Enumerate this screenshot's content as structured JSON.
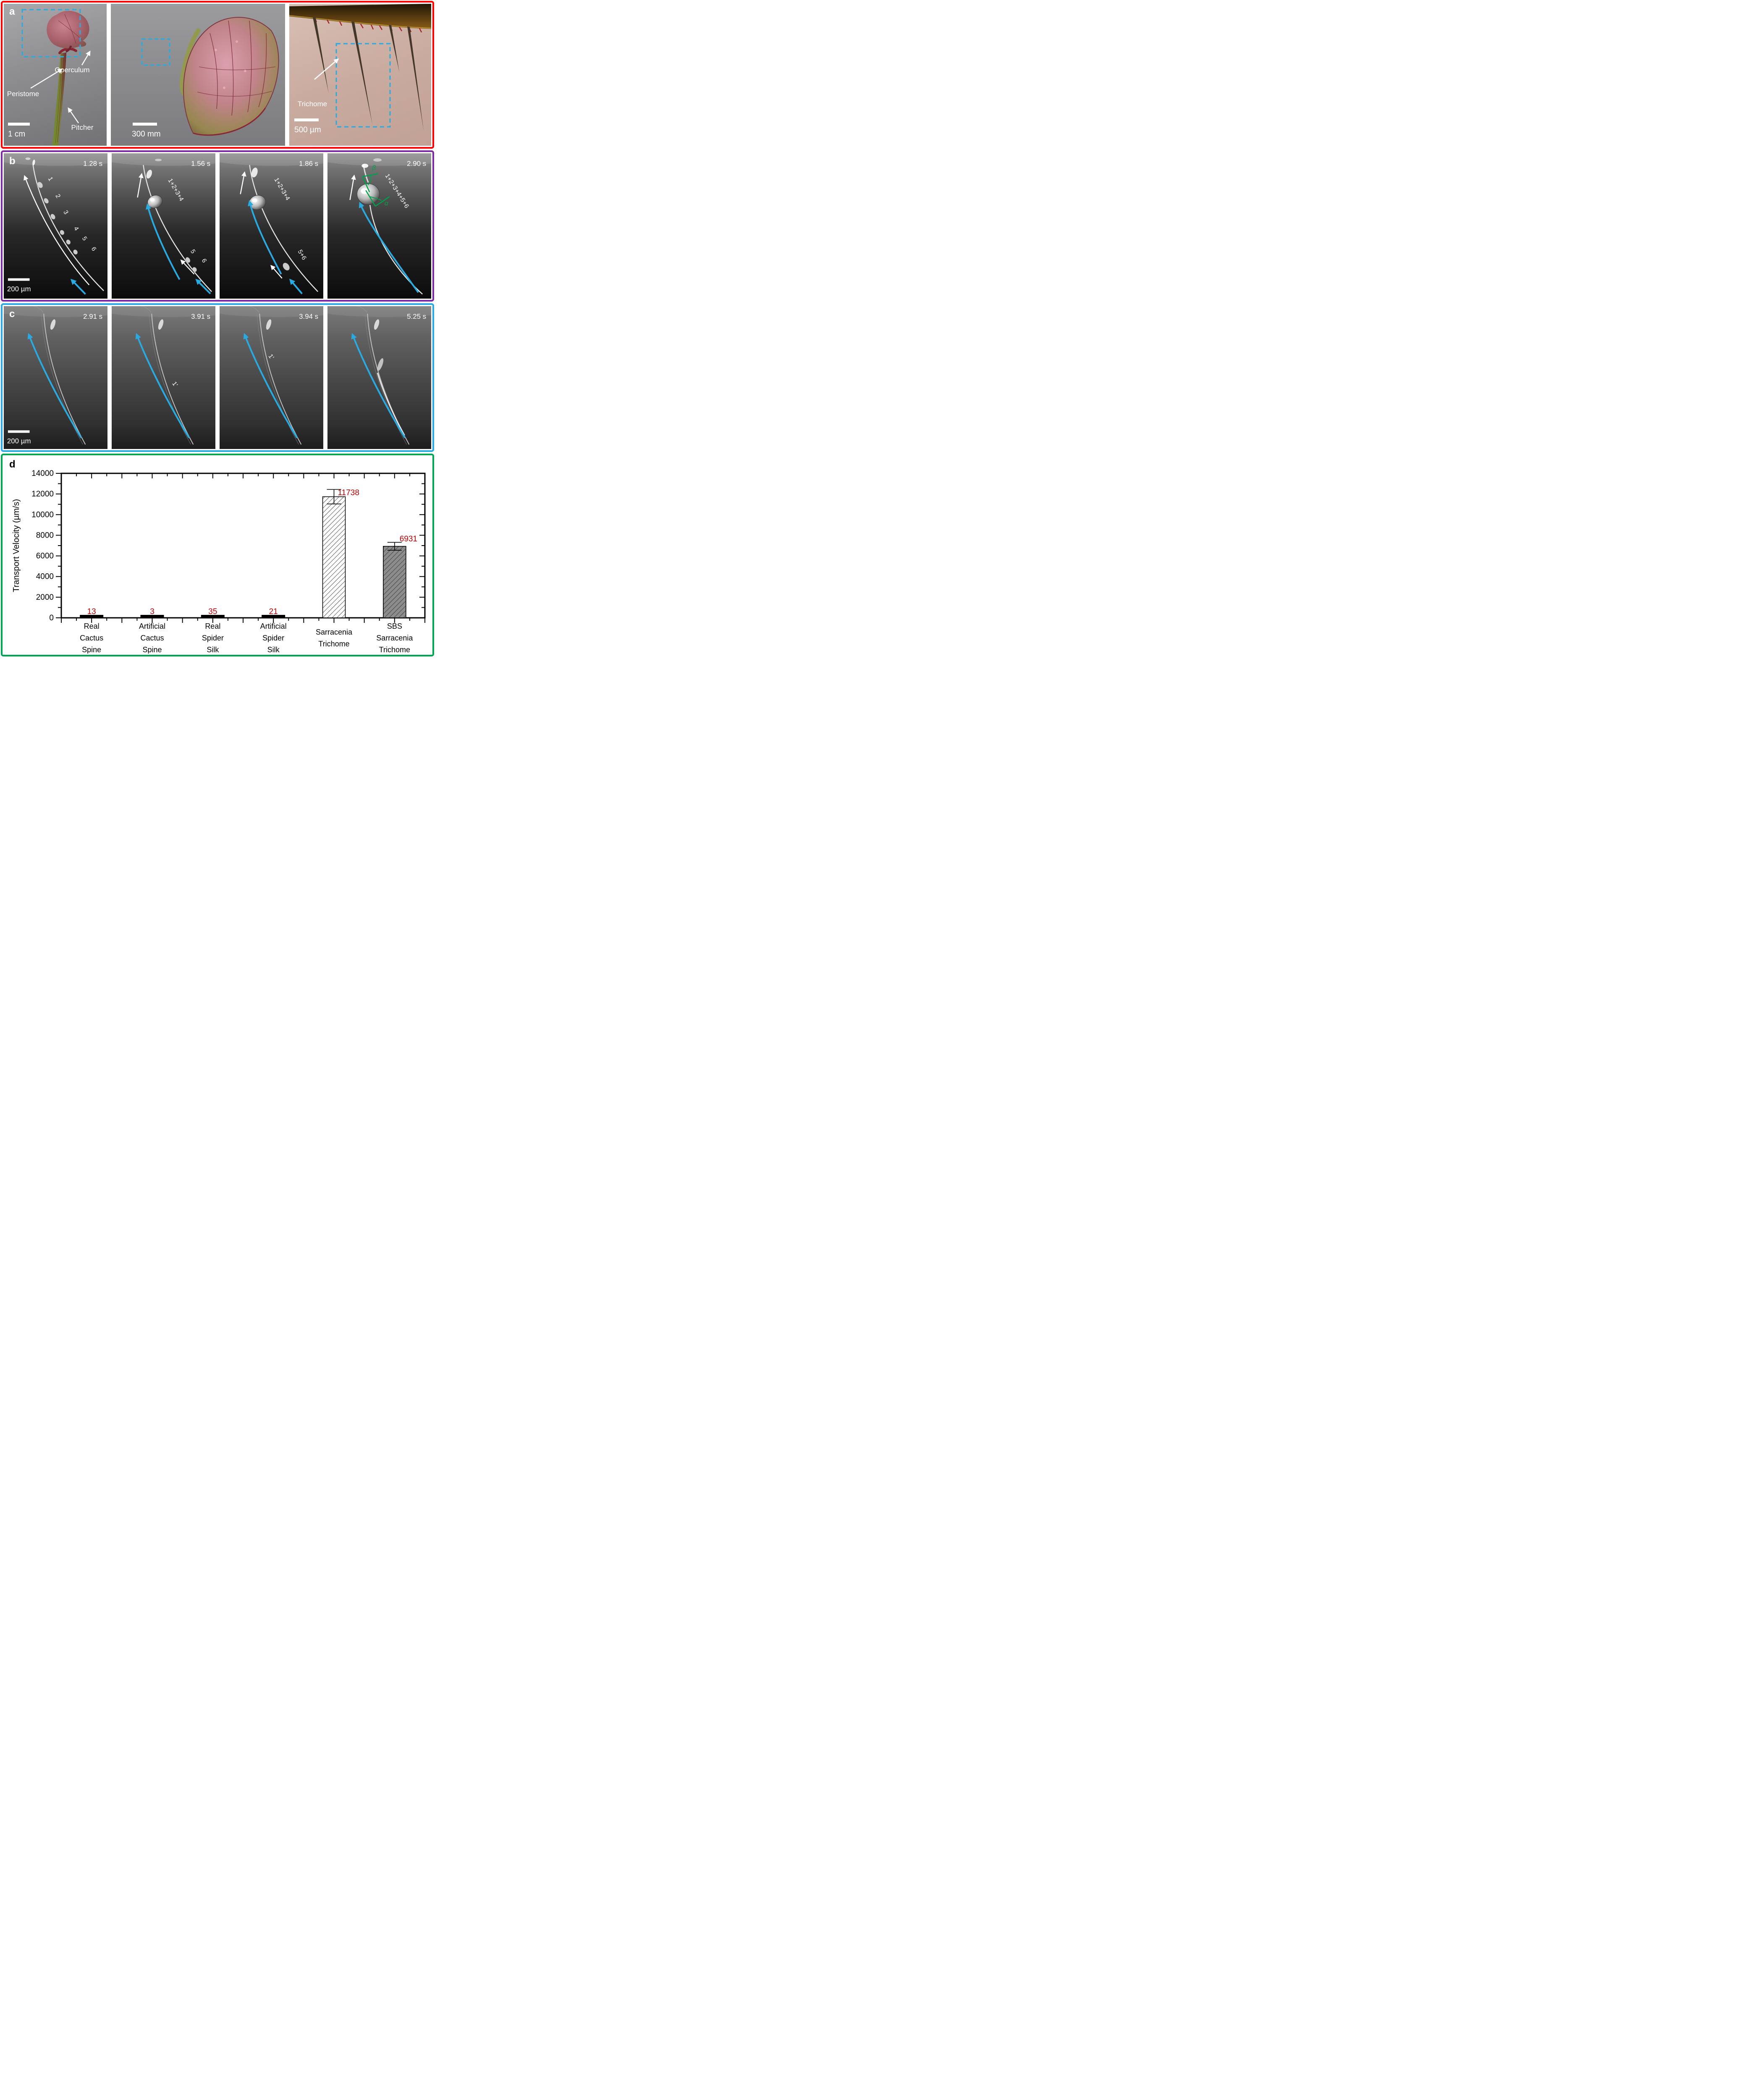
{
  "panel_a": {
    "label": "a",
    "border_color": "#ff0000",
    "dashed_box_color": "#29abe2",
    "photo1": {
      "operculum": "Operculum",
      "peristome": "Peristome",
      "pitcher": "Pitcher",
      "scale_bar": "1 cm"
    },
    "photo2": {
      "scale_bar": "300 mm"
    },
    "photo3": {
      "trichome": "Trichome",
      "scale_bar": "500 µm"
    }
  },
  "panel_b": {
    "label": "b",
    "border_color": "#7b2ca0",
    "arrow_color": "#29abe2",
    "scale_bar": "200 µm",
    "frames": [
      {
        "time": "1.28 s",
        "labels": [
          "1",
          "2",
          "3",
          "4",
          "5",
          "6"
        ]
      },
      {
        "time": "1.56 s",
        "labels": [
          "1+2+3+4",
          "5",
          "6"
        ]
      },
      {
        "time": "1.86 s",
        "labels": [
          "1+2+3+4",
          "5+6"
        ]
      },
      {
        "time": "2.90 s",
        "labels": [
          "1+2+3+4+5+6"
        ],
        "angles": {
          "beta": "β",
          "alpha": "α"
        },
        "angle_color": "#00a14b"
      }
    ]
  },
  "panel_c": {
    "label": "c",
    "border_color": "#29abe2",
    "arrow_color": "#29abe2",
    "scale_bar": "200 µm",
    "frames": [
      {
        "time": "2.91 s"
      },
      {
        "time": "3.91 s",
        "label": "1'"
      },
      {
        "time": "3.94 s",
        "label": "1'"
      },
      {
        "time": "5.25 s"
      }
    ]
  },
  "panel_d": {
    "label": "d",
    "border_color": "#00a651",
    "chart_data": {
      "type": "bar",
      "title": "",
      "xlabel": "",
      "ylabel": "Transport Velocity (µm/s)",
      "ylim": [
        0,
        14000
      ],
      "ytick_interval": 2000,
      "ytick_labels": [
        "0",
        "2000",
        "4000",
        "6000",
        "8000",
        "10000",
        "12000",
        "14000"
      ],
      "categories": [
        [
          "Real",
          "Cactus",
          "Spine"
        ],
        [
          "Artificial",
          "Cactus",
          "Spine"
        ],
        [
          "Real",
          "Spider",
          "Silk"
        ],
        [
          "Artificial",
          "Spider",
          "Silk"
        ],
        [
          "Sarracenia",
          "Trichome"
        ],
        [
          "SBS",
          "Sarracenia",
          "Trichome"
        ]
      ],
      "values": [
        13,
        3,
        35,
        21,
        11738,
        6931
      ],
      "error_bars": [
        0,
        0,
        0,
        0,
        700,
        380
      ],
      "value_labels": [
        "13",
        "3",
        "35",
        "21",
        "11738",
        "6931"
      ],
      "value_label_color": "#bf0000",
      "bar_styles": [
        "solid-black",
        "solid-black",
        "solid-black",
        "solid-black",
        "hatch-white",
        "hatch-gray"
      ],
      "grid": false,
      "legend": false
    }
  }
}
